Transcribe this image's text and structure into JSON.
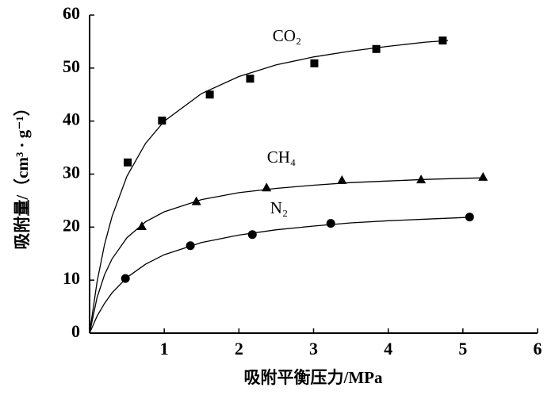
{
  "chart_data": {
    "type": "scatter",
    "xlabel": "吸附平衡压力/MPa",
    "ylabel": "吸附量/（cm³ · g⁻¹）",
    "xlim": [
      0,
      6
    ],
    "xticks": [
      1,
      2,
      3,
      4,
      5,
      6
    ],
    "ylim": [
      0,
      60
    ],
    "yticks": [
      0,
      10,
      20,
      30,
      40,
      50,
      60
    ],
    "series": [
      {
        "name": "CO₂",
        "color": "#000000",
        "marker": "square",
        "x": [
          0.51,
          0.97,
          1.61,
          2.15,
          3.01,
          3.84,
          4.73
        ],
        "values": [
          32.2,
          40.1,
          45.0,
          48.0,
          50.9,
          53.6,
          55.2
        ],
        "fit_x": [
          0,
          0.1,
          0.2,
          0.3,
          0.5,
          0.75,
          1,
          1.5,
          2,
          2.5,
          3,
          3.5,
          4,
          4.5,
          4.8
        ],
        "fit_values": [
          0,
          9.65,
          16.7,
          22.0,
          29.6,
          35.8,
          40.0,
          45.2,
          48.4,
          50.6,
          52.1,
          53.2,
          54.1,
          54.9,
          55.2
        ]
      },
      {
        "name": "CH₄",
        "color": "#000000",
        "marker": "triangle",
        "x": [
          0.7,
          1.43,
          2.37,
          3.38,
          4.44,
          5.27
        ],
        "values": [
          20.2,
          24.9,
          27.5,
          28.9,
          29.0,
          29.5
        ],
        "fit_x": [
          0,
          0.1,
          0.2,
          0.3,
          0.5,
          0.75,
          1,
          1.5,
          2,
          2.5,
          3,
          3.5,
          4,
          4.5,
          5,
          5.3
        ],
        "fit_values": [
          0,
          6.7,
          11.0,
          14.0,
          18.0,
          21.0,
          22.9,
          25.2,
          26.5,
          27.3,
          27.9,
          28.4,
          28.7,
          29.0,
          29.2,
          29.3
        ]
      },
      {
        "name": "N₂",
        "color": "#000000",
        "marker": "circle",
        "x": [
          0.48,
          1.35,
          2.18,
          3.23,
          5.09
        ],
        "values": [
          10.3,
          16.5,
          18.6,
          20.7,
          21.9
        ],
        "fit_x": [
          0,
          0.1,
          0.2,
          0.3,
          0.5,
          0.75,
          1,
          1.5,
          2,
          2.5,
          3,
          3.5,
          4,
          4.5,
          5,
          5.1
        ],
        "fit_values": [
          0,
          3.2,
          5.6,
          7.6,
          10.5,
          13.0,
          14.8,
          17.1,
          18.5,
          19.5,
          20.2,
          20.8,
          21.2,
          21.5,
          21.8,
          21.9
        ]
      }
    ]
  }
}
